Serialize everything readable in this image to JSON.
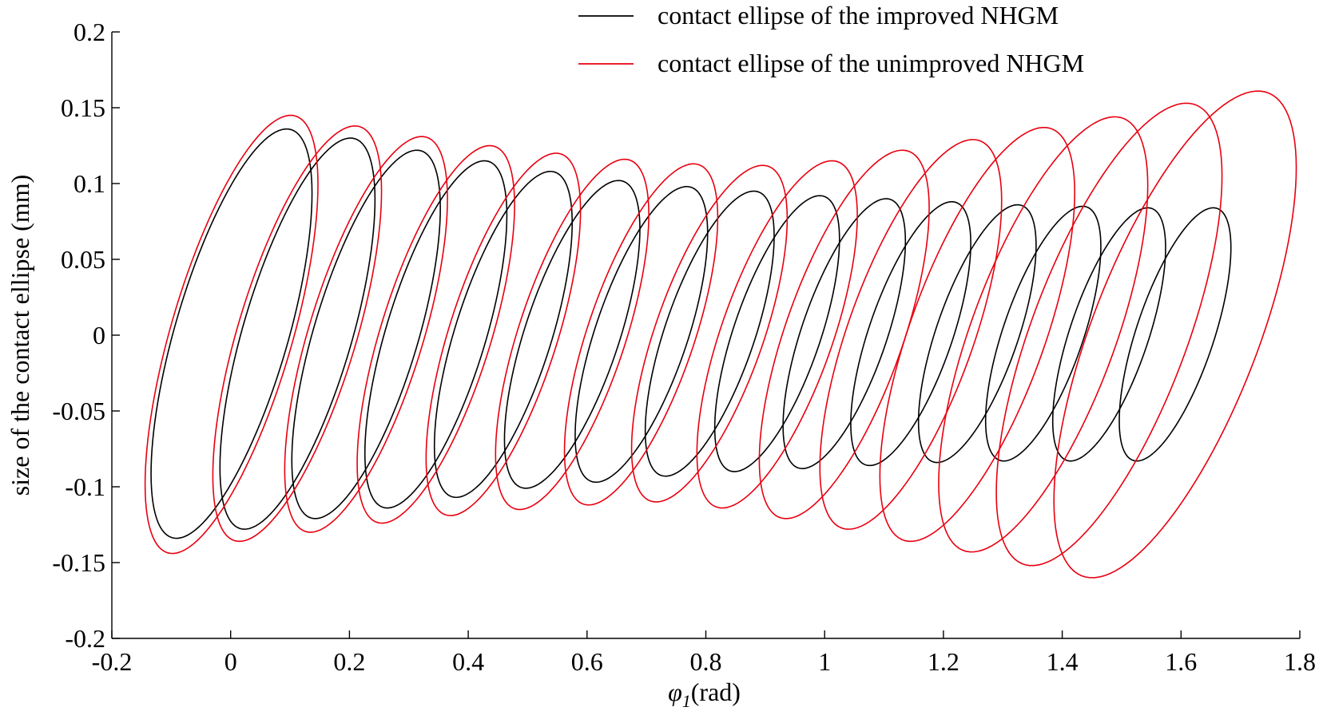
{
  "chart_data": {
    "type": "line",
    "xlabel_symbol": "φ",
    "xlabel_subscript": "1",
    "xlabel_unit": "(rad)",
    "ylabel": "size of the contact ellipse (mm)",
    "xlim": [
      -0.2,
      1.8
    ],
    "ylim": [
      -0.2,
      0.2
    ],
    "x_ticks": [
      -0.2,
      0,
      0.2,
      0.4,
      0.6,
      0.8,
      1,
      1.2,
      1.4,
      1.6,
      1.8
    ],
    "x_tick_labels": [
      "-0.2",
      "0",
      "0.2",
      "0.4",
      "0.6",
      "0.8",
      "1",
      "1.2",
      "1.4",
      "1.6",
      "1.8"
    ],
    "y_ticks": [
      -0.2,
      -0.15,
      -0.1,
      -0.05,
      0,
      0.05,
      0.1,
      0.15,
      0.2
    ],
    "y_tick_labels": [
      "-0.2",
      "-0.15",
      "-0.1",
      "-0.05",
      "0",
      "0.05",
      "0.1",
      "0.15",
      "0.2"
    ],
    "grid": false,
    "legend_position": "top-right",
    "series": [
      {
        "name": "contact ellipse of the improved NHGM",
        "color": "#000000",
        "ellipses": [
          {
            "cx": 0.0,
            "x_min": -0.134,
            "x_max": 0.137,
            "y_min": -0.134,
            "y_max": 0.136
          },
          {
            "cx": 0.11,
            "x_min": -0.018,
            "x_max": 0.243,
            "y_min": -0.128,
            "y_max": 0.13
          },
          {
            "cx": 0.227,
            "x_min": 0.103,
            "x_max": 0.353,
            "y_min": -0.121,
            "y_max": 0.122
          },
          {
            "cx": 0.345,
            "x_min": 0.226,
            "x_max": 0.465,
            "y_min": -0.114,
            "y_max": 0.115
          },
          {
            "cx": 0.459,
            "x_min": 0.343,
            "x_max": 0.575,
            "y_min": -0.107,
            "y_max": 0.108
          },
          {
            "cx": 0.575,
            "x_min": 0.461,
            "x_max": 0.689,
            "y_min": -0.101,
            "y_max": 0.102
          },
          {
            "cx": 0.691,
            "x_min": 0.58,
            "x_max": 0.803,
            "y_min": -0.097,
            "y_max": 0.098
          },
          {
            "cx": 0.806,
            "x_min": 0.698,
            "x_max": 0.915,
            "y_min": -0.093,
            "y_max": 0.095
          },
          {
            "cx": 0.92,
            "x_min": 0.815,
            "x_max": 1.025,
            "y_min": -0.09,
            "y_max": 0.092
          },
          {
            "cx": 1.033,
            "x_min": 0.93,
            "x_max": 1.136,
            "y_min": -0.088,
            "y_max": 0.09
          },
          {
            "cx": 1.145,
            "x_min": 1.044,
            "x_max": 1.246,
            "y_min": -0.086,
            "y_max": 0.088
          },
          {
            "cx": 1.257,
            "x_min": 1.158,
            "x_max": 1.356,
            "y_min": -0.084,
            "y_max": 0.086
          },
          {
            "cx": 1.368,
            "x_min": 1.271,
            "x_max": 1.465,
            "y_min": -0.083,
            "y_max": 0.085
          },
          {
            "cx": 1.479,
            "x_min": 1.384,
            "x_max": 1.574,
            "y_min": -0.083,
            "y_max": 0.084
          },
          {
            "cx": 1.59,
            "x_min": 1.496,
            "x_max": 1.684,
            "y_min": -0.083,
            "y_max": 0.084
          }
        ]
      },
      {
        "name": "contact ellipse of the unimproved NHGM",
        "color": "#e8000f",
        "ellipses": [
          {
            "cx": 0.0,
            "x_min": -0.144,
            "x_max": 0.147,
            "y_min": -0.144,
            "y_max": 0.145
          },
          {
            "cx": 0.11,
            "x_min": -0.03,
            "x_max": 0.254,
            "y_min": -0.136,
            "y_max": 0.138
          },
          {
            "cx": 0.227,
            "x_min": 0.091,
            "x_max": 0.365,
            "y_min": -0.13,
            "y_max": 0.131
          },
          {
            "cx": 0.345,
            "x_min": 0.213,
            "x_max": 0.478,
            "y_min": -0.124,
            "y_max": 0.125
          },
          {
            "cx": 0.459,
            "x_min": 0.329,
            "x_max": 0.589,
            "y_min": -0.119,
            "y_max": 0.12
          },
          {
            "cx": 0.575,
            "x_min": 0.446,
            "x_max": 0.704,
            "y_min": -0.115,
            "y_max": 0.116
          },
          {
            "cx": 0.691,
            "x_min": 0.562,
            "x_max": 0.82,
            "y_min": -0.112,
            "y_max": 0.113
          },
          {
            "cx": 0.806,
            "x_min": 0.675,
            "x_max": 0.937,
            "y_min": -0.11,
            "y_max": 0.112
          },
          {
            "cx": 0.92,
            "x_min": 0.785,
            "x_max": 1.055,
            "y_min": -0.114,
            "y_max": 0.115
          },
          {
            "cx": 1.033,
            "x_min": 0.89,
            "x_max": 1.176,
            "y_min": -0.121,
            "y_max": 0.122
          },
          {
            "cx": 1.145,
            "x_min": 0.992,
            "x_max": 1.298,
            "y_min": -0.128,
            "y_max": 0.129
          },
          {
            "cx": 1.257,
            "x_min": 1.093,
            "x_max": 1.421,
            "y_min": -0.136,
            "y_max": 0.137
          },
          {
            "cx": 1.368,
            "x_min": 1.192,
            "x_max": 1.544,
            "y_min": -0.143,
            "y_max": 0.144
          },
          {
            "cx": 1.479,
            "x_min": 1.289,
            "x_max": 1.669,
            "y_min": -0.152,
            "y_max": 0.153
          },
          {
            "cx": 1.59,
            "x_min": 1.386,
            "x_max": 1.794,
            "y_min": -0.16,
            "y_max": 0.161
          }
        ]
      }
    ]
  }
}
